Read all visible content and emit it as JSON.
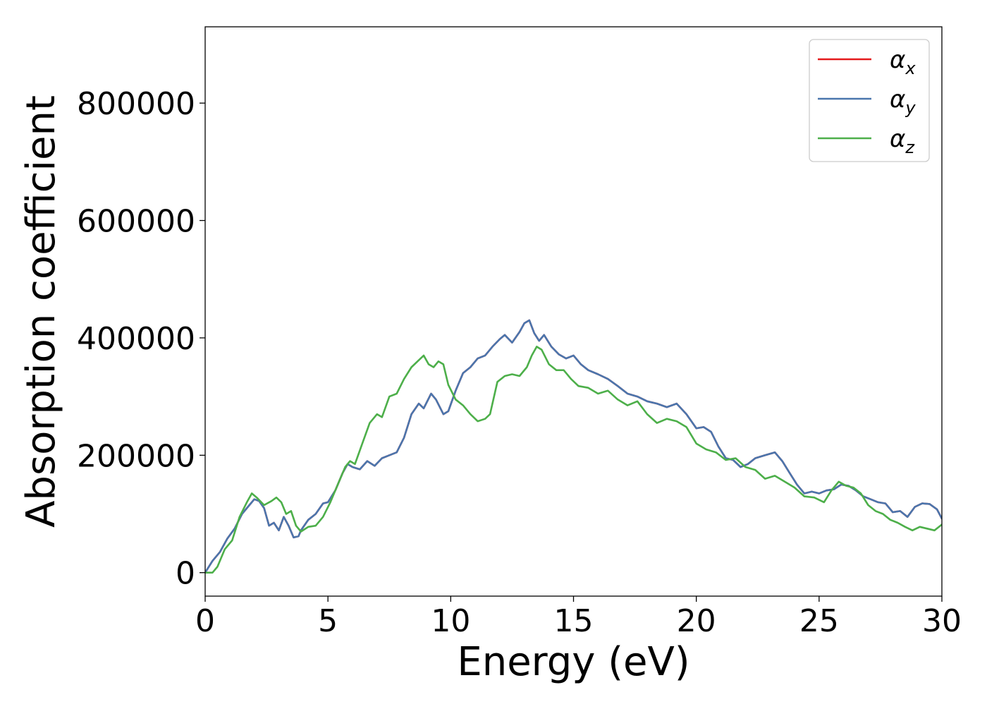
{
  "chart_data": {
    "type": "line",
    "title": "",
    "xlabel": "Energy (eV)",
    "ylabel": "Absorption coefficient",
    "xlim": [
      0,
      30
    ],
    "ylim": [
      -40000,
      930000
    ],
    "xticks": [
      0,
      5,
      10,
      15,
      20,
      25,
      30
    ],
    "yticks": [
      0,
      200000,
      400000,
      600000,
      800000
    ],
    "grid": false,
    "legend_position": "top-right",
    "series": [
      {
        "name": "α_x",
        "label_base": "α",
        "label_sub": "x",
        "color": "#e41a1c",
        "x": [
          0,
          0.3,
          0.6,
          0.9,
          1.2,
          1.5,
          1.8,
          2.0,
          2.2,
          2.4,
          2.6,
          2.8,
          3.0,
          3.2,
          3.4,
          3.6,
          3.8,
          3.9,
          4.2,
          4.5,
          4.8,
          5.0,
          5.3,
          5.6,
          5.8,
          6.0,
          6.3,
          6.6,
          6.9,
          7.2,
          7.5,
          7.8,
          8.1,
          8.4,
          8.7,
          8.9,
          9.2,
          9.4,
          9.7,
          9.9,
          10.2,
          10.5,
          10.8,
          11.1,
          11.4,
          11.7,
          12.0,
          12.2,
          12.5,
          12.8,
          13.0,
          13.2,
          13.4,
          13.6,
          13.8,
          14.1,
          14.4,
          14.7,
          15.0,
          15.3,
          15.6,
          16.0,
          16.4,
          16.8,
          17.2,
          17.6,
          18.0,
          18.4,
          18.8,
          19.2,
          19.6,
          20.0,
          20.3,
          20.6,
          20.9,
          21.2,
          21.5,
          21.8,
          22.1,
          22.4,
          22.8,
          23.2,
          23.5,
          23.8,
          24.1,
          24.4,
          24.7,
          25.0,
          25.3,
          25.6,
          25.9,
          26.2,
          26.5,
          26.8,
          27.1,
          27.4,
          27.7,
          28.0,
          28.3,
          28.6,
          28.9,
          29.2,
          29.5,
          29.8,
          30.0
        ],
        "y": [
          0,
          20000,
          35000,
          58000,
          75000,
          100000,
          115000,
          125000,
          122000,
          110000,
          80000,
          85000,
          72000,
          95000,
          80000,
          60000,
          62000,
          72000,
          90000,
          100000,
          118000,
          120000,
          140000,
          170000,
          185000,
          180000,
          176000,
          190000,
          182000,
          195000,
          200000,
          205000,
          230000,
          270000,
          288000,
          280000,
          305000,
          295000,
          270000,
          275000,
          310000,
          340000,
          350000,
          365000,
          370000,
          385000,
          398000,
          405000,
          392000,
          410000,
          425000,
          430000,
          408000,
          395000,
          405000,
          385000,
          372000,
          365000,
          370000,
          355000,
          345000,
          338000,
          330000,
          318000,
          305000,
          300000,
          292000,
          288000,
          282000,
          288000,
          270000,
          246000,
          248000,
          240000,
          215000,
          195000,
          192000,
          180000,
          185000,
          195000,
          200000,
          205000,
          190000,
          170000,
          150000,
          135000,
          138000,
          135000,
          140000,
          142000,
          150000,
          148000,
          140000,
          130000,
          125000,
          120000,
          118000,
          103000,
          105000,
          95000,
          112000,
          118000,
          117000,
          108000,
          92000
        ]
      },
      {
        "name": "α_y",
        "label_base": "α",
        "label_sub": "y",
        "color": "#4a76ad",
        "x": [
          0,
          0.3,
          0.6,
          0.9,
          1.2,
          1.5,
          1.8,
          2.0,
          2.2,
          2.4,
          2.6,
          2.8,
          3.0,
          3.2,
          3.4,
          3.6,
          3.8,
          3.9,
          4.2,
          4.5,
          4.8,
          5.0,
          5.3,
          5.6,
          5.8,
          6.0,
          6.3,
          6.6,
          6.9,
          7.2,
          7.5,
          7.8,
          8.1,
          8.4,
          8.7,
          8.9,
          9.2,
          9.4,
          9.7,
          9.9,
          10.2,
          10.5,
          10.8,
          11.1,
          11.4,
          11.7,
          12.0,
          12.2,
          12.5,
          12.8,
          13.0,
          13.2,
          13.4,
          13.6,
          13.8,
          14.1,
          14.4,
          14.7,
          15.0,
          15.3,
          15.6,
          16.0,
          16.4,
          16.8,
          17.2,
          17.6,
          18.0,
          18.4,
          18.8,
          19.2,
          19.6,
          20.0,
          20.3,
          20.6,
          20.9,
          21.2,
          21.5,
          21.8,
          22.1,
          22.4,
          22.8,
          23.2,
          23.5,
          23.8,
          24.1,
          24.4,
          24.7,
          25.0,
          25.3,
          25.6,
          25.9,
          26.2,
          26.5,
          26.8,
          27.1,
          27.4,
          27.7,
          28.0,
          28.3,
          28.6,
          28.9,
          29.2,
          29.5,
          29.8,
          30.0
        ],
        "y": [
          0,
          20000,
          35000,
          58000,
          75000,
          100000,
          115000,
          125000,
          122000,
          110000,
          80000,
          85000,
          72000,
          95000,
          80000,
          60000,
          62000,
          72000,
          90000,
          100000,
          118000,
          120000,
          140000,
          170000,
          185000,
          180000,
          176000,
          190000,
          182000,
          195000,
          200000,
          205000,
          230000,
          270000,
          288000,
          280000,
          305000,
          295000,
          270000,
          275000,
          310000,
          340000,
          350000,
          365000,
          370000,
          385000,
          398000,
          405000,
          392000,
          410000,
          425000,
          430000,
          408000,
          395000,
          405000,
          385000,
          372000,
          365000,
          370000,
          355000,
          345000,
          338000,
          330000,
          318000,
          305000,
          300000,
          292000,
          288000,
          282000,
          288000,
          270000,
          246000,
          248000,
          240000,
          215000,
          195000,
          192000,
          180000,
          185000,
          195000,
          200000,
          205000,
          190000,
          170000,
          150000,
          135000,
          138000,
          135000,
          140000,
          142000,
          150000,
          148000,
          140000,
          130000,
          125000,
          120000,
          118000,
          103000,
          105000,
          95000,
          112000,
          118000,
          117000,
          108000,
          92000
        ]
      },
      {
        "name": "α_z",
        "label_base": "α",
        "label_sub": "z",
        "color": "#4daf4a",
        "x": [
          0,
          0.3,
          0.5,
          0.8,
          1.1,
          1.4,
          1.7,
          1.9,
          2.1,
          2.4,
          2.7,
          2.9,
          3.1,
          3.3,
          3.5,
          3.7,
          3.9,
          4.2,
          4.5,
          4.8,
          5.1,
          5.4,
          5.7,
          5.9,
          6.1,
          6.4,
          6.7,
          7.0,
          7.2,
          7.5,
          7.8,
          8.1,
          8.4,
          8.7,
          8.9,
          9.1,
          9.3,
          9.5,
          9.7,
          9.9,
          10.2,
          10.5,
          10.8,
          11.1,
          11.4,
          11.6,
          11.9,
          12.2,
          12.5,
          12.8,
          13.1,
          13.3,
          13.5,
          13.7,
          14.0,
          14.3,
          14.6,
          14.9,
          15.2,
          15.6,
          16.0,
          16.4,
          16.8,
          17.2,
          17.6,
          18.0,
          18.4,
          18.8,
          19.2,
          19.6,
          20.0,
          20.4,
          20.8,
          21.2,
          21.6,
          22.0,
          22.4,
          22.8,
          23.2,
          23.6,
          24.0,
          24.4,
          24.8,
          25.2,
          25.5,
          25.8,
          26.1,
          26.4,
          26.7,
          27.0,
          27.3,
          27.6,
          27.9,
          28.2,
          28.5,
          28.8,
          29.1,
          29.4,
          29.7,
          30.0
        ],
        "y": [
          0,
          0,
          10000,
          40000,
          55000,
          95000,
          120000,
          135000,
          128000,
          115000,
          122000,
          128000,
          120000,
          100000,
          105000,
          80000,
          70000,
          78000,
          80000,
          95000,
          120000,
          150000,
          180000,
          190000,
          185000,
          220000,
          255000,
          270000,
          265000,
          300000,
          305000,
          330000,
          350000,
          362000,
          370000,
          355000,
          350000,
          360000,
          355000,
          320000,
          295000,
          285000,
          270000,
          258000,
          262000,
          270000,
          325000,
          335000,
          338000,
          335000,
          350000,
          370000,
          385000,
          380000,
          355000,
          345000,
          345000,
          330000,
          318000,
          315000,
          305000,
          310000,
          295000,
          285000,
          292000,
          270000,
          255000,
          262000,
          258000,
          248000,
          220000,
          210000,
          205000,
          192000,
          195000,
          180000,
          175000,
          160000,
          165000,
          155000,
          145000,
          130000,
          128000,
          120000,
          140000,
          155000,
          148000,
          145000,
          135000,
          115000,
          105000,
          100000,
          90000,
          85000,
          78000,
          72000,
          78000,
          75000,
          72000,
          82000
        ]
      }
    ]
  }
}
